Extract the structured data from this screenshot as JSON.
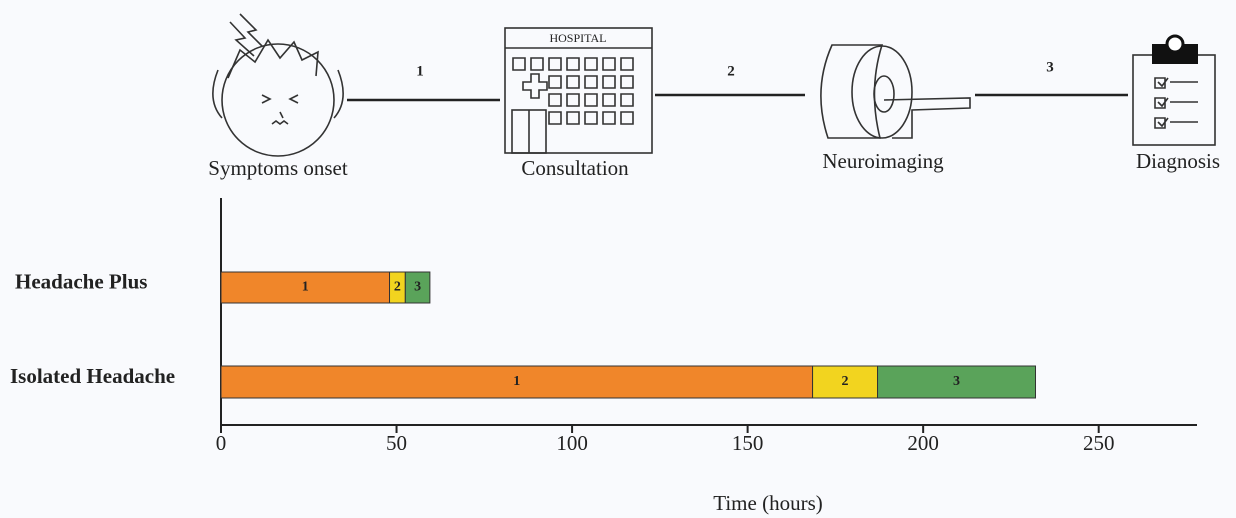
{
  "chart_data": {
    "type": "stacked-barh",
    "xlabel": "Time (hours)",
    "categories": [
      "Headache Plus",
      "Isolated Headache"
    ],
    "series": [
      {
        "name": "1",
        "color": "#f0862a",
        "values": [
          48,
          168.5
        ]
      },
      {
        "name": "2",
        "color": "#f2d41f",
        "values": [
          4.5,
          18.5
        ]
      },
      {
        "name": "3",
        "color": "#5aa35a",
        "values": [
          7,
          45
        ]
      }
    ],
    "xlim": [
      0,
      278
    ],
    "xticks": [
      0,
      50,
      100,
      150,
      200,
      250
    ]
  },
  "illustration": {
    "stages": [
      "Symptoms onset",
      "Consultation",
      "Neuroimaging",
      "Diagnosis"
    ],
    "hospital_sign": "HOSPITAL"
  }
}
